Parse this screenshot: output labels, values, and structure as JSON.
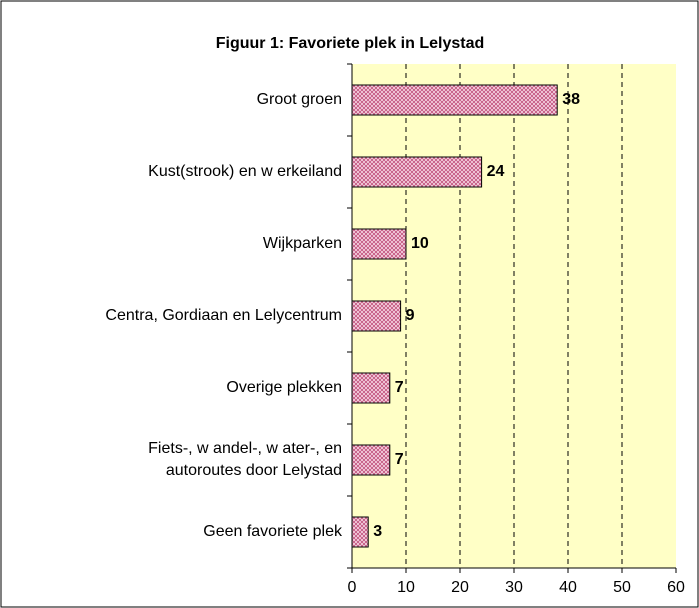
{
  "chart_data": {
    "type": "bar",
    "orientation": "horizontal",
    "title": "Figuur 1: Favoriete plek in Lelystad",
    "categories": [
      "Groot groen",
      "Kust(strook) en w erkeiland",
      "Wijkparken",
      "Centra, Gordiaan en Lelycentrum",
      "Overige plekken",
      "Fiets-, w andel-, w ater-, en\nautoroutes door Lelystad",
      "Geen favoriete plek"
    ],
    "values": [
      38,
      24,
      10,
      9,
      7,
      7,
      3
    ],
    "color": "#f4c6d8",
    "xlim": [
      0,
      60
    ],
    "xticks": [
      0,
      10,
      20,
      30,
      40,
      50,
      60
    ],
    "grid": true
  }
}
